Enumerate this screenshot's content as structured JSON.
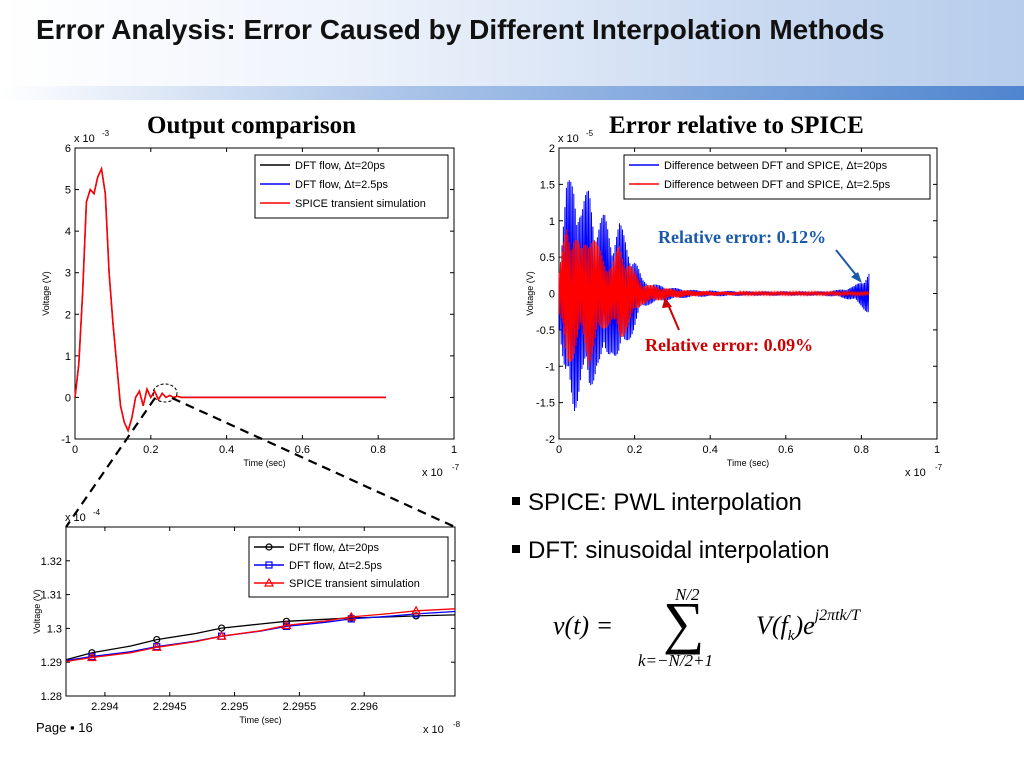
{
  "slide": {
    "title": "Error Analysis: Error Caused by Different Interpolation Methods",
    "page_label": "Page",
    "page_number": "16",
    "bullets": [
      "SPICE: PWL interpolation",
      "DFT: sinusoidal interpolation"
    ],
    "formula": {
      "lhs": "v(t) =",
      "sum_upper": "N/2",
      "sum_lower": "k=−N/2+1",
      "term": "V(f",
      "term_sub": "k",
      "term_close": ")e",
      "exponent": "j2πtk/T"
    },
    "annotations": {
      "blue_note": "Relative error: 0.12%",
      "red_note": "Relative error: 0.09%"
    },
    "colors": {
      "black": "#000000",
      "blue": "#0000ff",
      "red": "#ff0000",
      "note_blue": "#1a5aa8",
      "note_red": "#cc0000"
    }
  },
  "chart_data": [
    {
      "type": "line",
      "title": "Output comparison",
      "xlabel": "Time (sec)",
      "ylabel": "Voltage (V)",
      "x_multiplier": "x 10",
      "x_exponent": "-7",
      "y_multiplier": "x 10",
      "y_exponent": "-3",
      "xlim": [
        0,
        1
      ],
      "ylim": [
        -1,
        6
      ],
      "xticks": [
        0,
        0.2,
        0.4,
        0.6,
        0.8,
        1
      ],
      "xtick_labels": [
        "0",
        "0.2",
        "0.4",
        "0.6",
        "0.8",
        "1"
      ],
      "yticks": [
        -1,
        0,
        1,
        2,
        3,
        4,
        5,
        6
      ],
      "ytick_labels": [
        "-1",
        "0",
        "1",
        "2",
        "3",
        "4",
        "5",
        "6"
      ],
      "legend": "top-right",
      "series": [
        {
          "name": "DFT flow, Δt=20ps",
          "color": "#000000",
          "x": [
            0,
            0.01,
            0.02,
            0.03,
            0.04,
            0.05,
            0.06,
            0.07,
            0.08,
            0.09,
            0.1,
            0.11,
            0.12,
            0.13,
            0.14,
            0.15,
            0.16,
            0.17,
            0.18,
            0.19,
            0.2,
            0.21,
            0.22,
            0.23,
            0.24,
            0.25,
            0.26,
            0.27,
            0.28,
            0.3,
            0.35,
            0.4,
            0.5,
            0.6,
            0.7,
            0.8,
            0.82
          ],
          "y": [
            0,
            0.8,
            2.5,
            4.7,
            5.0,
            4.9,
            5.3,
            5.5,
            4.9,
            3.0,
            1.8,
            0.8,
            -0.2,
            -0.6,
            -0.8,
            -0.5,
            0.0,
            0.15,
            -0.2,
            0.2,
            0.0,
            0.15,
            -0.05,
            0.1,
            0.0,
            0.05,
            0.0,
            0.03,
            0.0,
            0.0,
            0.0,
            0.0,
            0.0,
            0.0,
            0.0,
            0.0,
            0.0
          ]
        },
        {
          "name": "DFT flow, Δt=2.5ps",
          "color": "#0000ff",
          "x": [
            0,
            0.01,
            0.02,
            0.03,
            0.04,
            0.05,
            0.06,
            0.07,
            0.08,
            0.09,
            0.1,
            0.11,
            0.12,
            0.13,
            0.14,
            0.15,
            0.16,
            0.17,
            0.18,
            0.19,
            0.2,
            0.21,
            0.22,
            0.23,
            0.24,
            0.25,
            0.26,
            0.27,
            0.28,
            0.3,
            0.35,
            0.4,
            0.5,
            0.6,
            0.7,
            0.8,
            0.82
          ],
          "y": [
            0,
            0.8,
            2.5,
            4.7,
            5.0,
            4.9,
            5.3,
            5.5,
            4.9,
            3.0,
            1.8,
            0.8,
            -0.2,
            -0.6,
            -0.8,
            -0.5,
            0.0,
            0.15,
            -0.2,
            0.2,
            0.0,
            0.15,
            -0.05,
            0.1,
            0.0,
            0.05,
            0.0,
            0.03,
            0.0,
            0.0,
            0.0,
            0.0,
            0.0,
            0.0,
            0.0,
            0.0,
            0.0
          ]
        },
        {
          "name": "SPICE transient simulation",
          "color": "#ff0000",
          "x": [
            0,
            0.01,
            0.02,
            0.03,
            0.04,
            0.05,
            0.06,
            0.07,
            0.08,
            0.09,
            0.1,
            0.11,
            0.12,
            0.13,
            0.14,
            0.15,
            0.16,
            0.17,
            0.18,
            0.19,
            0.2,
            0.21,
            0.22,
            0.23,
            0.24,
            0.25,
            0.26,
            0.27,
            0.28,
            0.3,
            0.35,
            0.4,
            0.5,
            0.6,
            0.7,
            0.8,
            0.82
          ],
          "y": [
            0,
            0.8,
            2.5,
            4.7,
            5.0,
            4.9,
            5.3,
            5.5,
            4.9,
            3.0,
            1.8,
            0.8,
            -0.2,
            -0.6,
            -0.8,
            -0.5,
            0.0,
            0.15,
            -0.2,
            0.2,
            0.0,
            0.15,
            -0.05,
            0.1,
            0.0,
            0.05,
            0.0,
            0.03,
            0.0,
            0.0,
            0.0,
            0.0,
            0.0,
            0.0,
            0.0,
            0.0,
            0.0
          ]
        }
      ]
    },
    {
      "type": "line",
      "title": "Error relative to SPICE",
      "xlabel": "Time (sec)",
      "ylabel": "Voltage (V)",
      "x_multiplier": "x 10",
      "x_exponent": "-7",
      "y_multiplier": "x 10",
      "y_exponent": "-5",
      "xlim": [
        0,
        1
      ],
      "ylim": [
        -2,
        2
      ],
      "xticks": [
        0,
        0.2,
        0.4,
        0.6,
        0.8,
        1
      ],
      "xtick_labels": [
        "0",
        "0.2",
        "0.4",
        "0.6",
        "0.8",
        "1"
      ],
      "yticks": [
        -2,
        -1.5,
        -1,
        -0.5,
        0,
        0.5,
        1,
        1.5,
        2
      ],
      "ytick_labels": [
        "-2",
        "-1.5",
        "-1",
        "-0.5",
        "0",
        "0.5",
        "1",
        "1.5",
        "2"
      ],
      "legend": "top-right",
      "series": [
        {
          "name": "Difference between DFT and SPICE, Δt=20ps",
          "color": "#0000ff",
          "envelope_x": [
            0,
            0.02,
            0.04,
            0.06,
            0.08,
            0.1,
            0.12,
            0.14,
            0.16,
            0.18,
            0.2,
            0.22,
            0.24,
            0.26,
            0.28,
            0.3,
            0.35,
            0.4,
            0.5,
            0.6,
            0.7,
            0.74,
            0.78,
            0.8,
            0.82
          ],
          "envelope_amp": [
            0.4,
            1.5,
            1.7,
            1.2,
            1.5,
            1.0,
            1.1,
            0.8,
            1.0,
            0.7,
            0.5,
            0.2,
            0.15,
            0.12,
            0.1,
            0.08,
            0.05,
            0.04,
            0.03,
            0.03,
            0.03,
            0.05,
            0.1,
            0.18,
            0.3
          ]
        },
        {
          "name": "Difference between DFT and SPICE, Δt=2.5ps",
          "color": "#ff0000",
          "envelope_x": [
            0,
            0.02,
            0.04,
            0.06,
            0.08,
            0.1,
            0.12,
            0.14,
            0.16,
            0.18,
            0.2,
            0.22,
            0.24,
            0.26,
            0.28,
            0.3,
            0.35,
            0.4,
            0.5,
            0.6,
            0.7,
            0.74,
            0.78,
            0.8,
            0.82
          ],
          "envelope_amp": [
            0.3,
            1.0,
            0.9,
            0.6,
            1.0,
            0.7,
            0.5,
            0.4,
            0.7,
            0.5,
            0.3,
            0.15,
            0.12,
            0.1,
            0.08,
            0.06,
            0.04,
            0.03,
            0.02,
            0.02,
            0.02,
            0.02,
            0.02,
            0.02,
            0.02
          ]
        }
      ]
    },
    {
      "type": "line",
      "title": "",
      "xlabel": "Time (sec)",
      "ylabel": "Voltage (V)",
      "x_multiplier": "x 10",
      "x_exponent": "-8",
      "y_multiplier": "x 10",
      "y_exponent": "-4",
      "xlim": [
        2.2937,
        2.2967
      ],
      "ylim": [
        1.28,
        1.33
      ],
      "xticks": [
        2.294,
        2.2945,
        2.295,
        2.2955,
        2.296
      ],
      "xtick_labels": [
        "2.294",
        "2.2945",
        "2.295",
        "2.2955",
        "2.296"
      ],
      "yticks": [
        1.28,
        1.29,
        1.3,
        1.31,
        1.32
      ],
      "ytick_labels": [
        "1.28",
        "1.29",
        "1.3",
        "1.31",
        "1.32"
      ],
      "legend": "top-right",
      "series": [
        {
          "name": "DFT flow, Δt=20ps",
          "color": "#000000",
          "marker": "circle",
          "x": [
            2.2937,
            2.2939,
            2.2942,
            2.2944,
            2.2947,
            2.2949,
            2.2952,
            2.2954,
            2.2957,
            2.2959,
            2.2962,
            2.2964,
            2.2967
          ],
          "y": [
            1.2907,
            1.2928,
            1.2948,
            1.2967,
            1.2985,
            1.3001,
            1.3013,
            1.3021,
            1.3027,
            1.3031,
            1.3034,
            1.3037,
            1.304
          ]
        },
        {
          "name": "DFT flow, Δt=2.5ps",
          "color": "#0000ff",
          "marker": "square",
          "x": [
            2.2937,
            2.2939,
            2.2942,
            2.2944,
            2.2947,
            2.2949,
            2.2952,
            2.2954,
            2.2957,
            2.2959,
            2.2962,
            2.2964,
            2.2967
          ],
          "y": [
            1.2905,
            1.2917,
            1.2931,
            1.2946,
            1.2962,
            1.2977,
            1.2992,
            1.3006,
            1.3018,
            1.3028,
            1.3036,
            1.3043,
            1.305
          ]
        },
        {
          "name": "SPICE transient simulation",
          "color": "#ff0000",
          "marker": "triangle",
          "x": [
            2.2937,
            2.2939,
            2.2942,
            2.2944,
            2.2947,
            2.2949,
            2.2952,
            2.2954,
            2.2957,
            2.2959,
            2.2962,
            2.2964,
            2.2967
          ],
          "y": [
            1.2902,
            1.2914,
            1.2928,
            1.2944,
            1.2961,
            1.2977,
            1.2993,
            1.3009,
            1.3022,
            1.3034,
            1.3044,
            1.3052,
            1.3058
          ]
        }
      ]
    }
  ]
}
